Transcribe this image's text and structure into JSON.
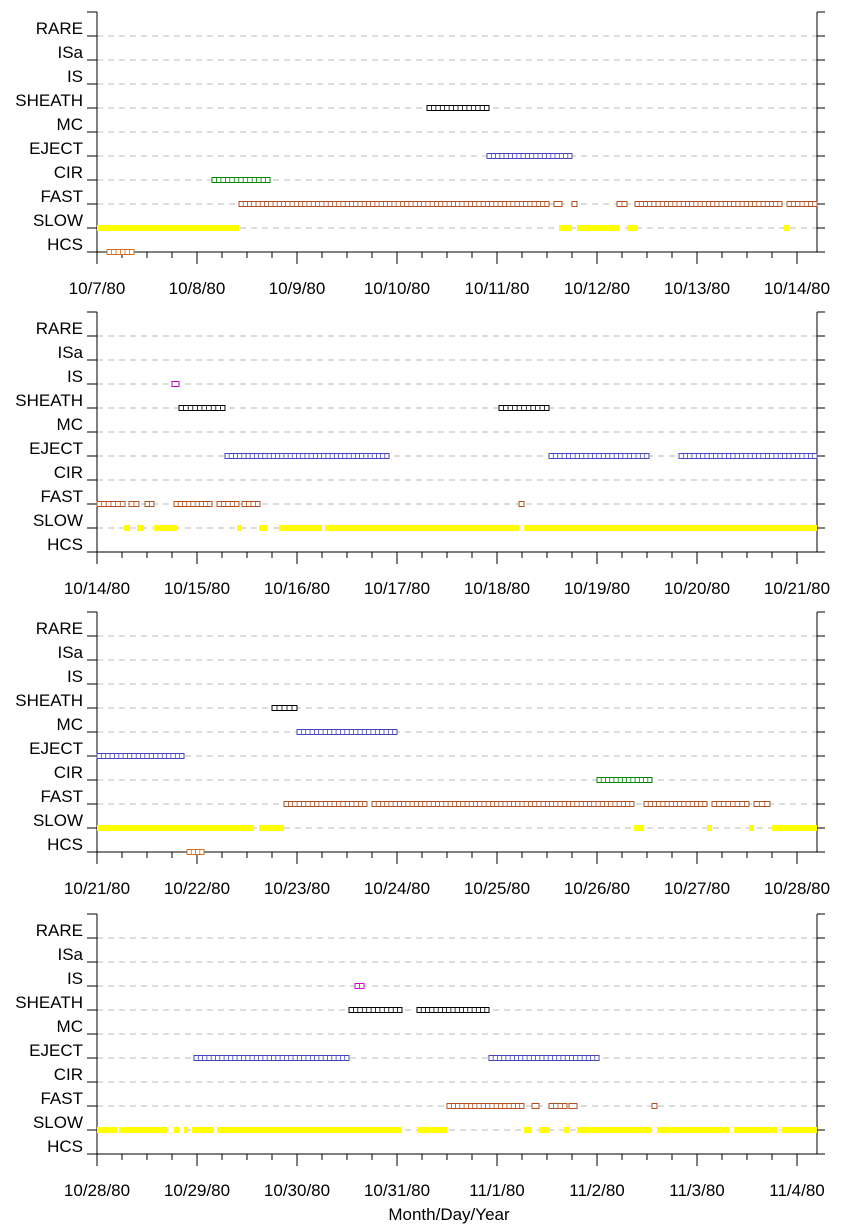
{
  "chart_data": {
    "type": "timeline",
    "xlabel": "Month/Day/Year",
    "categories": [
      "RARE",
      "ISa",
      "IS",
      "SHEATH",
      "MC",
      "EJECT",
      "CIR",
      "FAST",
      "SLOW",
      "HCS"
    ],
    "category_colors": {
      "RARE": "#000000",
      "ISa": "#000000",
      "IS": "#cc00cc",
      "SHEATH": "#000000",
      "MC": "#4444bb",
      "EJECT": "#4444bb",
      "CIR": "#008800",
      "FAST": "#b05020",
      "SLOW": "#ffff00",
      "HCS": "#d07020"
    },
    "panels": [
      {
        "start_day": 0,
        "tick_labels": [
          "10/7/80",
          "10/8/80",
          "10/9/80",
          "10/10/80",
          "10/11/80",
          "10/12/80",
          "10/13/80",
          "10/14/80"
        ],
        "events": [
          {
            "cat": "HCS",
            "from": 0.1,
            "to": 0.37
          },
          {
            "cat": "SLOW",
            "from": 0.0,
            "to": 1.42
          },
          {
            "cat": "SLOW",
            "from": 4.62,
            "to": 4.75
          },
          {
            "cat": "SLOW",
            "from": 4.8,
            "to": 5.22
          },
          {
            "cat": "SLOW",
            "from": 5.3,
            "to": 5.4
          },
          {
            "cat": "SLOW",
            "from": 6.87,
            "to": 6.92
          },
          {
            "cat": "FAST",
            "from": 1.42,
            "to": 4.52
          },
          {
            "cat": "FAST",
            "from": 4.57,
            "to": 4.65
          },
          {
            "cat": "FAST",
            "from": 4.75,
            "to": 4.8
          },
          {
            "cat": "FAST",
            "from": 5.2,
            "to": 5.3
          },
          {
            "cat": "FAST",
            "from": 5.38,
            "to": 6.85
          },
          {
            "cat": "FAST",
            "from": 6.9,
            "to": 7.2
          },
          {
            "cat": "CIR",
            "from": 1.15,
            "to": 1.73
          },
          {
            "cat": "EJECT",
            "from": 3.9,
            "to": 4.75
          },
          {
            "cat": "SHEATH",
            "from": 3.3,
            "to": 3.92
          }
        ]
      },
      {
        "start_day": 7,
        "tick_labels": [
          "10/14/80",
          "10/15/80",
          "10/16/80",
          "10/17/80",
          "10/18/80",
          "10/19/80",
          "10/20/80",
          "10/21/80"
        ],
        "events": [
          {
            "cat": "SLOW",
            "from": 0.27,
            "to": 0.33
          },
          {
            "cat": "SLOW",
            "from": 0.4,
            "to": 0.47
          },
          {
            "cat": "SLOW",
            "from": 0.57,
            "to": 0.8
          },
          {
            "cat": "SLOW",
            "from": 1.4,
            "to": 1.45
          },
          {
            "cat": "SLOW",
            "from": 1.62,
            "to": 1.7
          },
          {
            "cat": "SLOW",
            "from": 1.82,
            "to": 2.25
          },
          {
            "cat": "SLOW",
            "from": 2.28,
            "to": 4.22
          },
          {
            "cat": "SLOW",
            "from": 4.27,
            "to": 7.2
          },
          {
            "cat": "FAST",
            "from": 0.0,
            "to": 0.28
          },
          {
            "cat": "FAST",
            "from": 0.32,
            "to": 0.42
          },
          {
            "cat": "FAST",
            "from": 0.48,
            "to": 0.57
          },
          {
            "cat": "FAST",
            "from": 0.77,
            "to": 1.15
          },
          {
            "cat": "FAST",
            "from": 1.2,
            "to": 1.42
          },
          {
            "cat": "FAST",
            "from": 1.45,
            "to": 1.63
          },
          {
            "cat": "FAST",
            "from": 4.22,
            "to": 4.27
          },
          {
            "cat": "EJECT",
            "from": 1.28,
            "to": 2.92
          },
          {
            "cat": "EJECT",
            "from": 4.52,
            "to": 5.52
          },
          {
            "cat": "EJECT",
            "from": 5.82,
            "to": 7.2
          },
          {
            "cat": "SHEATH",
            "from": 0.82,
            "to": 1.28
          },
          {
            "cat": "SHEATH",
            "from": 4.02,
            "to": 4.52
          },
          {
            "cat": "IS",
            "from": 0.75,
            "to": 0.82
          }
        ]
      },
      {
        "start_day": 14,
        "tick_labels": [
          "10/21/80",
          "10/22/80",
          "10/23/80",
          "10/24/80",
          "10/25/80",
          "10/26/80",
          "10/27/80",
          "10/28/80"
        ],
        "events": [
          {
            "cat": "HCS",
            "from": 0.9,
            "to": 1.07
          },
          {
            "cat": "SLOW",
            "from": 0.0,
            "to": 1.57
          },
          {
            "cat": "SLOW",
            "from": 1.62,
            "to": 1.87
          },
          {
            "cat": "SLOW",
            "from": 5.37,
            "to": 5.47
          },
          {
            "cat": "SLOW",
            "from": 6.1,
            "to": 6.15
          },
          {
            "cat": "SLOW",
            "from": 6.52,
            "to": 6.57
          },
          {
            "cat": "SLOW",
            "from": 6.75,
            "to": 7.2
          },
          {
            "cat": "FAST",
            "from": 1.87,
            "to": 2.7
          },
          {
            "cat": "FAST",
            "from": 2.75,
            "to": 5.37
          },
          {
            "cat": "FAST",
            "from": 5.47,
            "to": 6.1
          },
          {
            "cat": "FAST",
            "from": 6.15,
            "to": 6.52
          },
          {
            "cat": "FAST",
            "from": 6.57,
            "to": 6.73
          },
          {
            "cat": "CIR",
            "from": 5.0,
            "to": 5.55
          },
          {
            "cat": "EJECT",
            "from": 0.0,
            "to": 0.87
          },
          {
            "cat": "MC",
            "from": 2.0,
            "to": 3.0
          },
          {
            "cat": "SHEATH",
            "from": 1.75,
            "to": 2.0
          }
        ]
      },
      {
        "start_day": 21,
        "tick_labels": [
          "10/28/80",
          "10/29/80",
          "10/30/80",
          "10/31/80",
          "11/1/80",
          "11/2/80",
          "11/3/80",
          "11/4/80"
        ],
        "events": [
          {
            "cat": "SLOW",
            "from": 0.0,
            "to": 0.2
          },
          {
            "cat": "SLOW",
            "from": 0.22,
            "to": 0.7
          },
          {
            "cat": "SLOW",
            "from": 0.77,
            "to": 0.82
          },
          {
            "cat": "SLOW",
            "from": 0.87,
            "to": 0.9
          },
          {
            "cat": "SLOW",
            "from": 0.95,
            "to": 1.17
          },
          {
            "cat": "SLOW",
            "from": 1.2,
            "to": 3.05
          },
          {
            "cat": "SLOW",
            "from": 3.2,
            "to": 3.5
          },
          {
            "cat": "SLOW",
            "from": 4.27,
            "to": 4.35
          },
          {
            "cat": "SLOW",
            "from": 4.42,
            "to": 4.52
          },
          {
            "cat": "SLOW",
            "from": 4.67,
            "to": 4.72
          },
          {
            "cat": "SLOW",
            "from": 4.8,
            "to": 5.55
          },
          {
            "cat": "SLOW",
            "from": 5.6,
            "to": 6.32
          },
          {
            "cat": "SLOW",
            "from": 6.37,
            "to": 6.8
          },
          {
            "cat": "SLOW",
            "from": 6.85,
            "to": 7.2
          },
          {
            "cat": "FAST",
            "from": 3.5,
            "to": 4.27
          },
          {
            "cat": "FAST",
            "from": 4.35,
            "to": 4.42
          },
          {
            "cat": "FAST",
            "from": 4.52,
            "to": 4.7
          },
          {
            "cat": "FAST",
            "from": 4.72,
            "to": 4.8
          },
          {
            "cat": "FAST",
            "from": 5.55,
            "to": 5.6
          },
          {
            "cat": "EJECT",
            "from": 0.97,
            "to": 2.52
          },
          {
            "cat": "EJECT",
            "from": 3.92,
            "to": 5.02
          },
          {
            "cat": "SHEATH",
            "from": 2.52,
            "to": 3.05
          },
          {
            "cat": "SHEATH",
            "from": 3.2,
            "to": 3.92
          },
          {
            "cat": "IS",
            "from": 2.58,
            "to": 2.67
          }
        ]
      }
    ]
  }
}
